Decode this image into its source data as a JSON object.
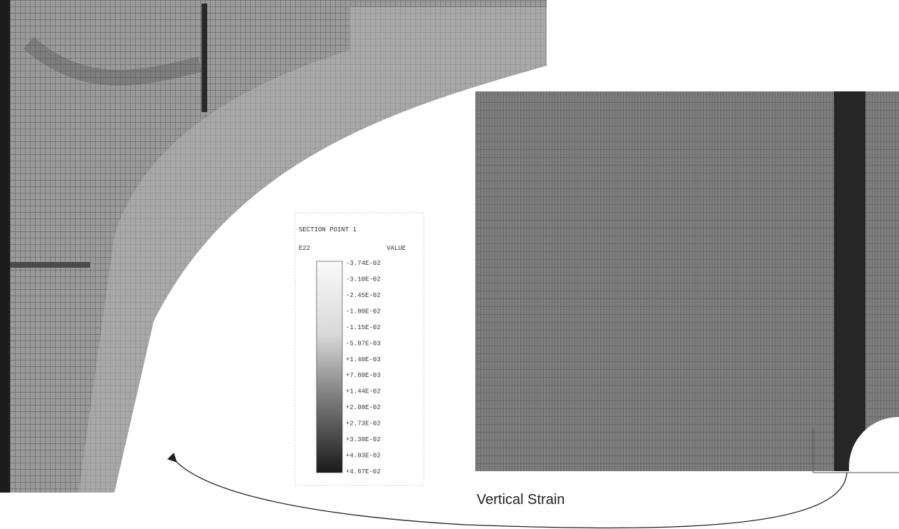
{
  "legend": {
    "title": "SECTION POINT 1",
    "variable": "E22",
    "value_header": "VALUE",
    "values": [
      "-3.74E-02",
      "-3.10E-02",
      "-2.45E-02",
      "-1.80E-02",
      "-1.15E-02",
      "-5.07E-03",
      "+1.40E-03",
      "+7.88E-03",
      "+1.44E-02",
      "+2.08E-02",
      "+2.73E-02",
      "+3.38E-02",
      "+4.03E-02",
      "+4.67E-02"
    ]
  },
  "caption": "Vertical Strain"
}
